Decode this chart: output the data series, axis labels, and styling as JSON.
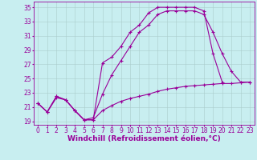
{
  "background_color": "#c8eef0",
  "grid_color": "#aacccc",
  "line_color": "#990099",
  "marker": "+",
  "marker_size": 3,
  "line_width": 0.8,
  "xlabel": "Windchill (Refroidissement éolien,°C)",
  "xlabel_fontsize": 6.5,
  "tick_fontsize": 5.5,
  "xlim": [
    -0.5,
    23.5
  ],
  "ylim": [
    18.5,
    35.8
  ],
  "yticks": [
    19,
    21,
    23,
    25,
    27,
    29,
    31,
    33,
    35
  ],
  "xticks": [
    0,
    1,
    2,
    3,
    4,
    5,
    6,
    7,
    8,
    9,
    10,
    11,
    12,
    13,
    14,
    15,
    16,
    17,
    18,
    19,
    20,
    21,
    22,
    23
  ],
  "curves": [
    {
      "x": [
        0,
        1,
        2,
        3,
        4,
        5,
        6,
        7,
        8,
        9,
        10,
        11,
        12,
        13,
        14,
        15,
        16,
        17,
        18,
        19,
        20
      ],
      "y": [
        21.5,
        20.3,
        22.5,
        22.0,
        20.5,
        19.2,
        19.2,
        27.2,
        28.0,
        29.5,
        31.5,
        32.5,
        34.2,
        35.0,
        35.0,
        35.0,
        35.0,
        35.0,
        34.5,
        28.5,
        24.5
      ]
    },
    {
      "x": [
        0,
        1,
        2,
        3,
        4,
        5,
        6,
        7,
        8,
        9,
        10,
        11,
        12,
        13,
        14,
        15,
        16,
        17,
        18,
        19,
        20,
        21,
        22,
        23
      ],
      "y": [
        21.5,
        20.3,
        22.5,
        22.0,
        20.5,
        19.2,
        19.5,
        22.8,
        25.5,
        27.5,
        29.5,
        31.5,
        32.5,
        34.0,
        34.5,
        34.5,
        34.5,
        34.5,
        34.0,
        31.5,
        28.5,
        26.0,
        24.5,
        24.5
      ]
    },
    {
      "x": [
        0,
        1,
        2,
        3,
        4,
        5,
        6,
        7,
        8,
        9,
        10,
        11,
        12,
        13,
        14,
        15,
        16,
        17,
        18,
        19,
        20,
        21,
        22,
        23
      ],
      "y": [
        21.5,
        20.3,
        22.3,
        22.0,
        20.5,
        19.2,
        19.2,
        20.5,
        21.2,
        21.8,
        22.2,
        22.5,
        22.8,
        23.2,
        23.5,
        23.7,
        23.9,
        24.0,
        24.1,
        24.2,
        24.3,
        24.3,
        24.4,
        24.5
      ]
    }
  ]
}
